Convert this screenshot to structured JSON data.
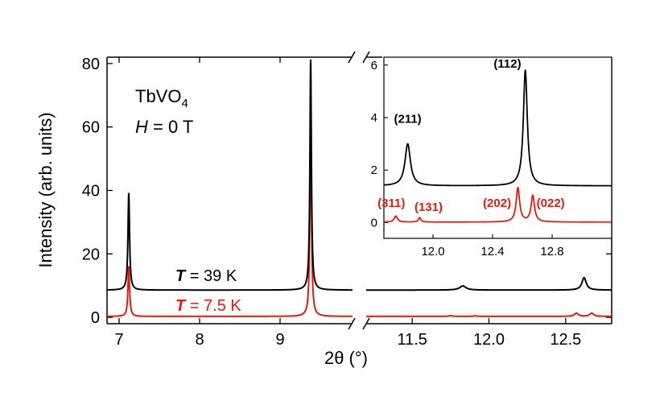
{
  "colors": {
    "hot": "#000000",
    "cold": "#e8190f"
  },
  "chart_data": [
    {
      "type": "line",
      "title": "",
      "xlabel": "2θ (°)",
      "ylabel": "Intensity (arb. units)",
      "ylim": [
        -2,
        82
      ],
      "yticks": [
        "0",
        "20",
        "40",
        "60",
        "80"
      ],
      "ytick_values": [
        0,
        20,
        40,
        60,
        80
      ],
      "x_break": true,
      "x_segments": [
        {
          "xlim": [
            6.85,
            9.9
          ],
          "ticks": [
            "7",
            "8",
            "9"
          ],
          "tick_values": [
            7,
            8,
            9
          ]
        },
        {
          "xlim": [
            11.2,
            12.8
          ],
          "ticks": [
            "11.5",
            "12.0",
            "12.5"
          ],
          "tick_values": [
            11.5,
            12.0,
            12.5
          ]
        }
      ],
      "annotations": {
        "compound": "TbVO",
        "compound_sub": "4",
        "field_label": "H",
        "field_value": " = 0 T",
        "t_hot_label": "T",
        "t_hot_value": " = 39 K",
        "t_cold_label": "T",
        "t_cold_value": " = 7.5 K"
      },
      "series": [
        {
          "name": "T = 39 K",
          "color": "#000000",
          "baseline": 8.6,
          "peaks": [
            {
              "x": 7.12,
              "height": 30.5,
              "width": 0.012
            },
            {
              "x": 9.38,
              "height": 72.5,
              "width": 0.011
            },
            {
              "x": 11.83,
              "height": 1.3,
              "width": 0.025
            },
            {
              "x": 12.62,
              "height": 3.9,
              "width": 0.017
            }
          ]
        },
        {
          "name": "T = 7.5 K",
          "color": "#e8190f",
          "baseline": 0.3,
          "peaks": [
            {
              "x": 7.12,
              "height": 15.7,
              "width": 0.012
            },
            {
              "x": 9.38,
              "height": 66.2,
              "width": 0.011
            },
            {
              "x": 11.75,
              "height": 0.25,
              "width": 0.015
            },
            {
              "x": 11.91,
              "height": 0.2,
              "width": 0.012
            },
            {
              "x": 12.57,
              "height": 1.0,
              "width": 0.016
            },
            {
              "x": 12.67,
              "height": 1.0,
              "width": 0.016
            }
          ]
        }
      ]
    },
    {
      "type": "line",
      "title": "inset",
      "xlim": [
        11.67,
        13.2
      ],
      "ylim": [
        -0.6,
        6.3
      ],
      "xticks": [
        "12.0",
        "12.4",
        "12.8"
      ],
      "xtick_values": [
        12.0,
        12.4,
        12.8
      ],
      "yticks": [
        "0",
        "2",
        "4",
        "6"
      ],
      "ytick_values": [
        0,
        2,
        4,
        6
      ],
      "labels_black": [
        {
          "text": "(211)",
          "x": 11.83,
          "y": 3.8
        },
        {
          "text": "(112)",
          "x": 12.5,
          "y": 5.9
        }
      ],
      "labels_red": [
        {
          "text": "(311)",
          "x": 11.72,
          "y": 0.6
        },
        {
          "text": "(131)",
          "x": 11.97,
          "y": 0.45
        },
        {
          "text": "(202)",
          "x": 12.43,
          "y": 0.6
        },
        {
          "text": "(022)",
          "x": 12.79,
          "y": 0.6
        }
      ],
      "series": [
        {
          "name": "T = 39 K",
          "color": "#000000",
          "baseline": 1.4,
          "peaks": [
            {
              "x": 11.83,
              "height": 1.6,
              "width": 0.022
            },
            {
              "x": 12.62,
              "height": 4.4,
              "width": 0.016
            }
          ]
        },
        {
          "name": "T = 7.5 K",
          "color": "#e8190f",
          "baseline": 0.02,
          "peaks": [
            {
              "x": 11.75,
              "height": 0.23,
              "width": 0.013
            },
            {
              "x": 11.91,
              "height": 0.17,
              "width": 0.01
            },
            {
              "x": 12.57,
              "height": 1.3,
              "width": 0.014
            },
            {
              "x": 12.67,
              "height": 1.0,
              "width": 0.014
            }
          ]
        }
      ]
    }
  ]
}
